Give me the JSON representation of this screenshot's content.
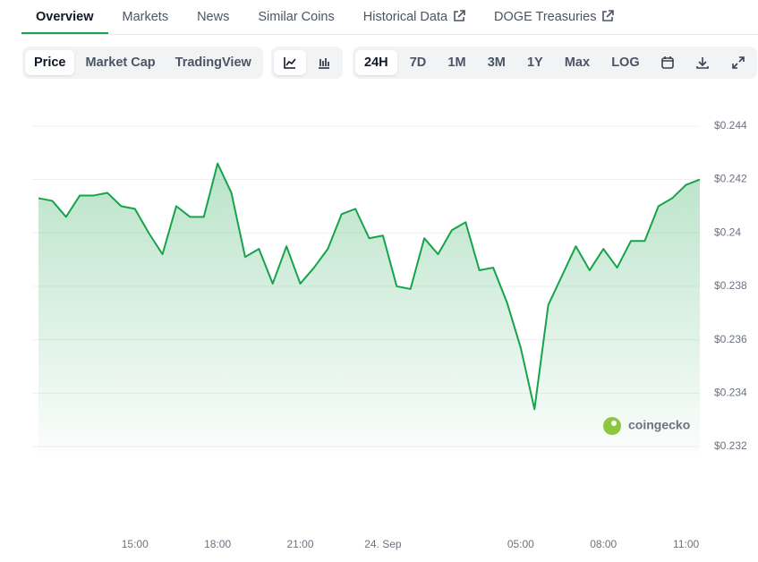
{
  "tabs": [
    "Overview",
    "Markets",
    "News",
    "Similar Coins",
    "Historical Data",
    "DOGE Treasuries"
  ],
  "toolbar": {
    "views": [
      "Price",
      "Market Cap",
      "TradingView"
    ],
    "ranges": [
      "24H",
      "7D",
      "1M",
      "3M",
      "1Y",
      "Max",
      "LOG"
    ]
  },
  "watermark": "coingecko",
  "chart_data": {
    "type": "area",
    "color": "#16a34a",
    "categories": [
      null,
      null,
      null,
      null,
      null,
      null,
      null,
      "15:00",
      null,
      null,
      null,
      null,
      null,
      "18:00",
      null,
      null,
      null,
      null,
      null,
      "21:00",
      null,
      null,
      null,
      null,
      null,
      "24. Sep",
      null,
      null,
      null,
      null,
      null,
      null,
      null,
      null,
      null,
      "05:00",
      null,
      null,
      null,
      null,
      null,
      "08:00",
      null,
      null,
      null,
      null,
      null,
      "11:00",
      null
    ],
    "values": [
      0.2413,
      0.2412,
      0.2406,
      0.2414,
      0.2414,
      0.2415,
      0.241,
      0.2409,
      0.24,
      0.2392,
      0.241,
      0.2406,
      0.2406,
      0.2426,
      0.2415,
      0.2391,
      0.2394,
      0.2381,
      0.2395,
      0.2381,
      0.2387,
      0.2394,
      0.2407,
      0.2409,
      0.2398,
      0.2399,
      0.238,
      0.2379,
      0.2398,
      0.2392,
      0.2401,
      0.2404,
      0.2386,
      0.2387,
      0.2374,
      0.2357,
      0.2334,
      0.2373,
      0.2384,
      0.2395,
      0.2386,
      0.2394,
      0.2387,
      0.2397,
      0.2397,
      0.241,
      0.2413,
      0.2418,
      0.242
    ],
    "ylim": [
      0.2318,
      0.245
    ],
    "yticks": [
      {
        "value": 0.232,
        "label": "$0.232"
      },
      {
        "value": 0.234,
        "label": "$0.234"
      },
      {
        "value": 0.236,
        "label": "$0.236"
      },
      {
        "value": 0.238,
        "label": "$0.238"
      },
      {
        "value": 0.24,
        "label": "$0.24"
      },
      {
        "value": 0.242,
        "label": "$0.242"
      },
      {
        "value": 0.244,
        "label": "$0.244"
      }
    ],
    "grid": true
  }
}
